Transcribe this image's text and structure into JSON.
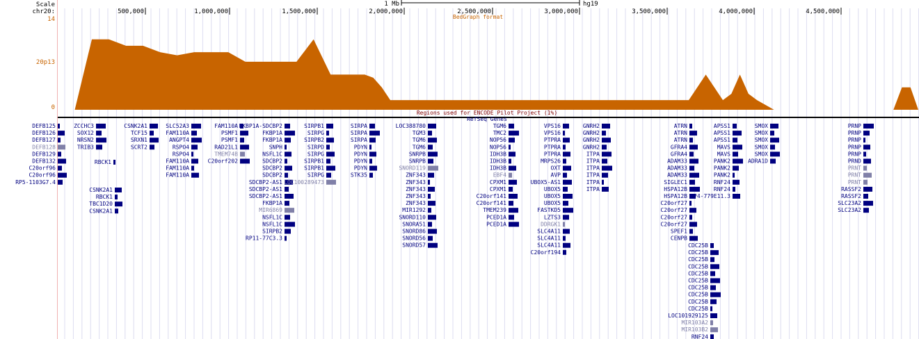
{
  "ruler": {
    "scale_label": "Scale",
    "scale_value": "1 Mb",
    "assembly": "hg19",
    "chrom_label": "chr20:",
    "positions": [
      "500,000",
      "1,000,000",
      "1,500,000",
      "2,000,000",
      "2,500,000",
      "3,000,000",
      "3,500,000",
      "4,000,000",
      "4,500,000"
    ]
  },
  "bedgraph": {
    "title": "BedGraph format",
    "track_name": "20p13",
    "max_label": "14",
    "min_label": "0",
    "color": "#c86400",
    "chart_data": {
      "type": "area",
      "x_label": "",
      "x": [
        0.1,
        0.2,
        0.3,
        0.4,
        0.5,
        0.6,
        0.7,
        0.8,
        0.9,
        1.0,
        1.1,
        1.2,
        1.3,
        1.4,
        1.5,
        1.6,
        1.7,
        1.8,
        1.85,
        1.9,
        1.95,
        2.0,
        2.1,
        2.2,
        2.3,
        2.4,
        2.5,
        2.6,
        2.7,
        2.8,
        2.9,
        3.0,
        3.1,
        3.2,
        3.3,
        3.4,
        3.5,
        3.6,
        3.7,
        3.8,
        3.9,
        3.95,
        4.0,
        4.05,
        4.1,
        4.2,
        4.3,
        4.4,
        4.5,
        4.6,
        4.7,
        4.8,
        4.9,
        4.95,
        5.0
      ],
      "y": [
        0,
        11,
        11,
        10,
        10,
        9,
        8.5,
        9,
        9,
        9,
        7.5,
        7.5,
        7.5,
        7.5,
        11,
        5.5,
        5.5,
        5.5,
        5,
        3.5,
        1.5,
        1.5,
        1.5,
        1.5,
        1.5,
        1.5,
        1.5,
        1.5,
        1.5,
        1.5,
        1.5,
        1.5,
        1.5,
        1.5,
        1.5,
        1.5,
        1.5,
        1.5,
        1.5,
        5.5,
        1.5,
        2.5,
        5.5,
        2.5,
        1.5,
        0,
        0,
        0,
        0,
        0,
        0,
        0,
        0,
        3.5,
        3.5
      ],
      "ylim": [
        0,
        14
      ]
    }
  },
  "regions_track": {
    "title": "Regions used for ENCODE Pilot Project (1%)"
  },
  "refseq": {
    "title": "RefSeq Genes",
    "color": "#000080",
    "gray_color": "#8080a8",
    "genes": [
      {
        "label": "DEFB125",
        "gray": false
      },
      {
        "label": "DEFB126",
        "gray": false
      },
      {
        "label": "DEFB127",
        "gray": false
      },
      {
        "label": "DEFB128",
        "gray": true
      },
      {
        "label": "DEFB129",
        "gray": false
      },
      {
        "label": "DEFB132",
        "gray": false
      },
      {
        "label": "C20orf96",
        "gray": false
      },
      {
        "label": "C20orf96",
        "gray": false
      },
      {
        "label": "RP5-1103G7.4",
        "gray": false
      },
      {
        "label": "ZCCHC3",
        "gray": false
      },
      {
        "label": "SOX12",
        "gray": false
      },
      {
        "label": "NRSN2",
        "gray": false
      },
      {
        "label": "TRIB3",
        "gray": false
      },
      {
        "label": "RBCK1",
        "gray": false
      },
      {
        "label": "CSNK2A1",
        "gray": false
      },
      {
        "label": "RBCK1",
        "gray": false
      },
      {
        "label": "TBC1D20",
        "gray": false
      },
      {
        "label": "CSNK2A1",
        "gray": false
      },
      {
        "label": "CSNK2A1",
        "gray": false
      },
      {
        "label": "TCF15",
        "gray": false
      },
      {
        "label": "SRXN1",
        "gray": false
      },
      {
        "label": "SCRT2",
        "gray": false
      },
      {
        "label": "SLC52A3",
        "gray": false
      },
      {
        "label": "FAM110A",
        "gray": false
      },
      {
        "label": "ANGPT4",
        "gray": false
      },
      {
        "label": "RSPO4",
        "gray": false
      },
      {
        "label": "RSPO4",
        "gray": false
      },
      {
        "label": "FAM110A",
        "gray": false
      },
      {
        "label": "FAM110A",
        "gray": false
      },
      {
        "label": "FAM110A",
        "gray": false
      },
      {
        "label": "FAM110A",
        "gray": false
      },
      {
        "label": "PSMF1",
        "gray": false
      },
      {
        "label": "PSMF1",
        "gray": false
      },
      {
        "label": "RAD21L1",
        "gray": false
      },
      {
        "label": "TMEM74B",
        "gray": true
      },
      {
        "label": "C20orf202",
        "gray": false
      },
      {
        "label": "FKBP1A-SDCBP2",
        "gray": false
      },
      {
        "label": "FKBP1A",
        "gray": false
      },
      {
        "label": "FKBP1A",
        "gray": false
      },
      {
        "label": "SNPH",
        "gray": false
      },
      {
        "label": "NSFL1C",
        "gray": false
      },
      {
        "label": "SDCBP2",
        "gray": false
      },
      {
        "label": "SDCBP2",
        "gray": false
      },
      {
        "label": "SDCBP2",
        "gray": false
      },
      {
        "label": "SDCBP2-AS1",
        "gray": false
      },
      {
        "label": "SDCBP2-AS1",
        "gray": false
      },
      {
        "label": "SDCBP2-AS1",
        "gray": false
      },
      {
        "label": "FKBP1A",
        "gray": false
      },
      {
        "label": "MIR6869",
        "gray": true
      },
      {
        "label": "NSFL1C",
        "gray": false
      },
      {
        "label": "NSFL1C",
        "gray": false
      },
      {
        "label": "SIRPB2",
        "gray": false
      },
      {
        "label": "RP11-77C3.3",
        "gray": false
      },
      {
        "label": "SIRPB1",
        "gray": false
      },
      {
        "label": "SIRPG",
        "gray": false
      },
      {
        "label": "SIRPB2",
        "gray": false
      },
      {
        "label": "SIRPD",
        "gray": false
      },
      {
        "label": "SIRPG",
        "gray": false
      },
      {
        "label": "SIRPB1",
        "gray": false
      },
      {
        "label": "SIRPB1",
        "gray": false
      },
      {
        "label": "SIRPG",
        "gray": false
      },
      {
        "label": "LOC100289473",
        "gray": true
      },
      {
        "label": "SIRPA",
        "gray": false
      },
      {
        "label": "SIRPA",
        "gray": false
      },
      {
        "label": "SIRPA",
        "gray": false
      },
      {
        "label": "PDYN",
        "gray": false
      },
      {
        "label": "PDYN",
        "gray": false
      },
      {
        "label": "PDYN",
        "gray": false
      },
      {
        "label": "PDYN",
        "gray": false
      },
      {
        "label": "STK35",
        "gray": false
      },
      {
        "label": "LOC388780",
        "gray": false
      },
      {
        "label": "TGM3",
        "gray": false
      },
      {
        "label": "TGM6",
        "gray": false
      },
      {
        "label": "TGM6",
        "gray": false
      },
      {
        "label": "SNRPB",
        "gray": false
      },
      {
        "label": "SNRPB",
        "gray": false
      },
      {
        "label": "SNORD119",
        "gray": true
      },
      {
        "label": "ZNF343",
        "gray": false
      },
      {
        "label": "ZNF343",
        "gray": false
      },
      {
        "label": "ZNF343",
        "gray": false
      },
      {
        "label": "ZNF343",
        "gray": false
      },
      {
        "label": "ZNF343",
        "gray": false
      },
      {
        "label": "MIR1292",
        "gray": false
      },
      {
        "label": "SNORD110",
        "gray": false
      },
      {
        "label": "SNORA51",
        "gray": false
      },
      {
        "label": "SNORD86",
        "gray": false
      },
      {
        "label": "SNORD56",
        "gray": false
      },
      {
        "label": "SNORD57",
        "gray": false
      },
      {
        "label": "TGM6",
        "gray": false
      },
      {
        "label": "TMC2",
        "gray": false
      },
      {
        "label": "NOP56",
        "gray": false
      },
      {
        "label": "NOP56",
        "gray": false
      },
      {
        "label": "IDH3B",
        "gray": false
      },
      {
        "label": "IDH3B",
        "gray": false
      },
      {
        "label": "IDH3B",
        "gray": false
      },
      {
        "label": "EBF4",
        "gray": true
      },
      {
        "label": "CPXM1",
        "gray": false
      },
      {
        "label": "CPXM1",
        "gray": false
      },
      {
        "label": "C20orf141",
        "gray": false
      },
      {
        "label": "C20orf141",
        "gray": false
      },
      {
        "label": "TMEM239",
        "gray": false
      },
      {
        "label": "PCED1A",
        "gray": false
      },
      {
        "label": "PCED1A",
        "gray": false
      },
      {
        "label": "VPS16",
        "gray": false
      },
      {
        "label": "VPS16",
        "gray": false
      },
      {
        "label": "PTPRA",
        "gray": false
      },
      {
        "label": "PTPRA",
        "gray": false
      },
      {
        "label": "PTPRA",
        "gray": false
      },
      {
        "label": "MRPS26",
        "gray": false
      },
      {
        "label": "OXT",
        "gray": false
      },
      {
        "label": "AVP",
        "gray": false
      },
      {
        "label": "UBOX5-AS1",
        "gray": false
      },
      {
        "label": "UBOX5",
        "gray": false
      },
      {
        "label": "UBOX5",
        "gray": false
      },
      {
        "label": "UBOX5",
        "gray": false
      },
      {
        "label": "FASTKD5",
        "gray": false
      },
      {
        "label": "LZTS3",
        "gray": false
      },
      {
        "label": "DDRGK1",
        "gray": true
      },
      {
        "label": "SLC4A11",
        "gray": false
      },
      {
        "label": "SLC4A11",
        "gray": false
      },
      {
        "label": "SLC4A11",
        "gray": false
      },
      {
        "label": "C20orf194",
        "gray": false
      },
      {
        "label": "GNRH2",
        "gray": false
      },
      {
        "label": "GNRH2",
        "gray": false
      },
      {
        "label": "GNRH2",
        "gray": false
      },
      {
        "label": "GNRH2",
        "gray": false
      },
      {
        "label": "ITPA",
        "gray": false
      },
      {
        "label": "ITPA",
        "gray": false
      },
      {
        "label": "ITPA",
        "gray": false
      },
      {
        "label": "ITPA",
        "gray": false
      },
      {
        "label": "ITPA",
        "gray": false
      },
      {
        "label": "ITPA",
        "gray": false
      },
      {
        "label": "ATRN",
        "gray": false
      },
      {
        "label": "ATRN",
        "gray": false
      },
      {
        "label": "ATRN",
        "gray": false
      },
      {
        "label": "GFRA4",
        "gray": false
      },
      {
        "label": "GFRA4",
        "gray": false
      },
      {
        "label": "ADAM33",
        "gray": false
      },
      {
        "label": "ADAM33",
        "gray": false
      },
      {
        "label": "ADAM33",
        "gray": false
      },
      {
        "label": "SIGLEC1",
        "gray": false
      },
      {
        "label": "HSPA12B",
        "gray": false
      },
      {
        "label": "HSPA12B",
        "gray": false
      },
      {
        "label": "C20orf27",
        "gray": false
      },
      {
        "label": "C20orf27",
        "gray": false
      },
      {
        "label": "C20orf27",
        "gray": false
      },
      {
        "label": "C20orf27",
        "gray": false
      },
      {
        "label": "SPEF1",
        "gray": false
      },
      {
        "label": "CENPB",
        "gray": false
      },
      {
        "label": "APSS1",
        "gray": false
      },
      {
        "label": "APSS1",
        "gray": false
      },
      {
        "label": "APSS1",
        "gray": false
      },
      {
        "label": "MAVS",
        "gray": false
      },
      {
        "label": "MAVS",
        "gray": false
      },
      {
        "label": "PANK2",
        "gray": false
      },
      {
        "label": "PANK2",
        "gray": false
      },
      {
        "label": "PANK2",
        "gray": false
      },
      {
        "label": "RNF24",
        "gray": false
      },
      {
        "label": "RNF24",
        "gray": false
      },
      {
        "label": "RP4-779E11.3",
        "gray": false
      },
      {
        "label": "CDC25B",
        "gray": false
      },
      {
        "label": "CDC25B",
        "gray": false
      },
      {
        "label": "CDC25B",
        "gray": false
      },
      {
        "label": "CDC25B",
        "gray": false
      },
      {
        "label": "CDC25B",
        "gray": false
      },
      {
        "label": "CDC25B",
        "gray": false
      },
      {
        "label": "CDC25B",
        "gray": false
      },
      {
        "label": "CDC25B",
        "gray": false
      },
      {
        "label": "CDC25B",
        "gray": false
      },
      {
        "label": "CDC25B",
        "gray": false
      },
      {
        "label": "LOC101929125",
        "gray": false
      },
      {
        "label": "MIR103A2",
        "gray": true
      },
      {
        "label": "MIR103B2",
        "gray": true
      },
      {
        "label": "RNF24",
        "gray": false
      },
      {
        "label": "SMOX",
        "gray": false
      },
      {
        "label": "SMOX",
        "gray": false
      },
      {
        "label": "SMOX",
        "gray": false
      },
      {
        "label": "SMOX",
        "gray": false
      },
      {
        "label": "SMOX",
        "gray": false
      },
      {
        "label": "ADRA1D",
        "gray": false
      },
      {
        "label": "PRNP",
        "gray": false
      },
      {
        "label": "PRNP",
        "gray": false
      },
      {
        "label": "PRNP",
        "gray": false
      },
      {
        "label": "PRNP",
        "gray": false
      },
      {
        "label": "PRNP",
        "gray": false
      },
      {
        "label": "PRND",
        "gray": false
      },
      {
        "label": "PRNT",
        "gray": true
      },
      {
        "label": "PRNT",
        "gray": true
      },
      {
        "label": "PRNT",
        "gray": true
      },
      {
        "label": "RASSF2",
        "gray": false
      },
      {
        "label": "RASSF2",
        "gray": false
      },
      {
        "label": "SLC23A2",
        "gray": false
      },
      {
        "label": "SLC23A2",
        "gray": false
      }
    ]
  }
}
